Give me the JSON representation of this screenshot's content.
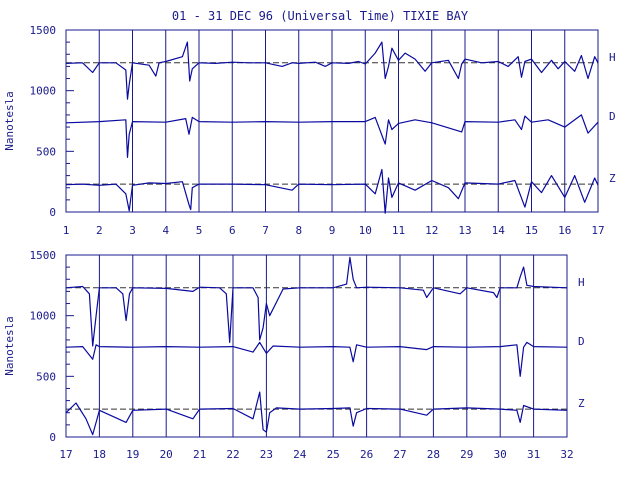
{
  "title": "01 - 31 DEC 96 (Universal Time) TIXIE BAY",
  "colors": {
    "ink": "#1a1a8c",
    "trace": "#0a0aa0",
    "background": "#ffffff"
  },
  "chart_data": [
    {
      "type": "line",
      "title": "01 - 31 DEC 96 (Universal Time) TIXIE BAY",
      "xlabel": "",
      "ylabel": "Nanotesla",
      "xlim": [
        1,
        17
      ],
      "ylim": [
        0,
        1500
      ],
      "x_ticks": [
        1,
        2,
        3,
        4,
        5,
        6,
        7,
        8,
        9,
        10,
        11,
        12,
        13,
        14,
        15,
        16,
        17
      ],
      "y_ticks": [
        0,
        500,
        1000,
        1500
      ],
      "grid": "vertical day lines",
      "series": [
        {
          "name": "H",
          "baseline": 1230,
          "dashed_reference": true,
          "x": [
            1,
            1.5,
            1.8,
            2,
            2.5,
            2.8,
            2.85,
            2.9,
            3,
            3.5,
            3.7,
            3.8,
            4,
            4.5,
            4.65,
            4.72,
            4.8,
            5,
            5.5,
            6,
            6.5,
            7,
            7.5,
            7.8,
            8,
            8.5,
            8.8,
            9,
            9.5,
            9.8,
            10,
            10.3,
            10.5,
            10.6,
            10.7,
            10.8,
            11,
            11.2,
            11.5,
            11.8,
            12,
            12.5,
            12.8,
            12.9,
            13,
            13.5,
            14,
            14.3,
            14.6,
            14.7,
            14.8,
            15,
            15.3,
            15.6,
            15.8,
            16,
            16.3,
            16.5,
            16.7,
            16.9,
            17
          ],
          "y": [
            1225,
            1230,
            1150,
            1230,
            1230,
            1170,
            930,
            1050,
            1230,
            1210,
            1120,
            1230,
            1240,
            1280,
            1400,
            1080,
            1180,
            1230,
            1225,
            1235,
            1230,
            1230,
            1200,
            1230,
            1225,
            1235,
            1200,
            1230,
            1225,
            1240,
            1220,
            1310,
            1400,
            1100,
            1200,
            1350,
            1250,
            1310,
            1260,
            1160,
            1230,
            1250,
            1100,
            1220,
            1260,
            1230,
            1240,
            1200,
            1280,
            1110,
            1240,
            1260,
            1150,
            1250,
            1180,
            1240,
            1160,
            1290,
            1100,
            1280,
            1230
          ]
        },
        {
          "name": "D",
          "baseline": 740,
          "dashed_reference": false,
          "x": [
            1,
            2,
            2.8,
            2.85,
            2.9,
            3,
            4,
            4.6,
            4.7,
            4.8,
            5,
            6,
            7,
            8,
            9,
            10,
            10.3,
            10.6,
            10.7,
            10.8,
            11,
            11.5,
            12,
            12.9,
            13,
            14,
            14.5,
            14.7,
            14.8,
            15,
            15.5,
            16,
            16.5,
            16.7,
            17
          ],
          "y": [
            735,
            745,
            760,
            450,
            640,
            745,
            740,
            770,
            640,
            780,
            745,
            740,
            745,
            740,
            745,
            745,
            780,
            560,
            760,
            680,
            730,
            760,
            735,
            660,
            745,
            740,
            760,
            680,
            790,
            740,
            760,
            700,
            800,
            650,
            740
          ]
        },
        {
          "name": "Z",
          "baseline": 230,
          "dashed_reference": true,
          "x": [
            1,
            1.5,
            2,
            2.5,
            2.8,
            2.9,
            3,
            3.5,
            4,
            4.5,
            4.7,
            4.75,
            4.8,
            5,
            6,
            7,
            7.8,
            8,
            9,
            10,
            10.3,
            10.5,
            10.6,
            10.7,
            10.8,
            11,
            11.5,
            12,
            12.5,
            12.8,
            13,
            14,
            14.5,
            14.8,
            15,
            15.3,
            15.6,
            16,
            16.3,
            16.6,
            16.9,
            17
          ],
          "y": [
            225,
            230,
            220,
            230,
            150,
            10,
            220,
            240,
            235,
            250,
            60,
            20,
            200,
            230,
            230,
            225,
            180,
            230,
            225,
            230,
            150,
            350,
            -10,
            280,
            120,
            240,
            180,
            260,
            200,
            110,
            240,
            230,
            260,
            40,
            250,
            160,
            300,
            120,
            300,
            80,
            280,
            220
          ]
        }
      ]
    },
    {
      "type": "line",
      "title": "",
      "xlabel": "",
      "ylabel": "Nanotesla",
      "xlim": [
        17,
        32
      ],
      "ylim": [
        0,
        1500
      ],
      "x_ticks": [
        17,
        18,
        19,
        20,
        21,
        22,
        23,
        24,
        25,
        26,
        27,
        28,
        29,
        30,
        31,
        32
      ],
      "y_ticks": [
        0,
        500,
        1000,
        1500
      ],
      "grid": "vertical day lines",
      "series": [
        {
          "name": "H",
          "baseline": 1230,
          "dashed_reference": true,
          "x": [
            17,
            17.5,
            17.7,
            17.8,
            17.9,
            18,
            18.5,
            18.7,
            18.8,
            18.9,
            19,
            20,
            20.8,
            21,
            21.6,
            21.8,
            21.9,
            22,
            22.6,
            22.75,
            22.8,
            22.9,
            23,
            23.1,
            23.5,
            24,
            25,
            25.4,
            25.5,
            25.6,
            25.7,
            26,
            27,
            27.7,
            27.8,
            28,
            28.8,
            29,
            29.8,
            29.9,
            30,
            30.5,
            30.6,
            30.7,
            30.8,
            31,
            32
          ],
          "y": [
            1230,
            1240,
            1180,
            750,
            1000,
            1230,
            1230,
            1180,
            960,
            1180,
            1230,
            1225,
            1200,
            1235,
            1230,
            1180,
            780,
            1230,
            1230,
            1150,
            800,
            900,
            1100,
            1000,
            1220,
            1230,
            1230,
            1260,
            1480,
            1300,
            1230,
            1235,
            1230,
            1210,
            1150,
            1230,
            1180,
            1230,
            1190,
            1150,
            1230,
            1230,
            1320,
            1400,
            1250,
            1240,
            1230
          ]
        },
        {
          "name": "D",
          "baseline": 740,
          "dashed_reference": false,
          "x": [
            17,
            17.5,
            17.8,
            17.9,
            18,
            19,
            20,
            21,
            22,
            22.6,
            22.8,
            23,
            23.2,
            24,
            25,
            25.5,
            25.6,
            25.7,
            26,
            27,
            27.8,
            28,
            29,
            30,
            30.5,
            30.6,
            30.7,
            30.8,
            31,
            32
          ],
          "y": [
            740,
            745,
            640,
            760,
            745,
            740,
            745,
            740,
            745,
            700,
            780,
            690,
            750,
            740,
            745,
            740,
            620,
            760,
            740,
            745,
            720,
            745,
            740,
            745,
            760,
            500,
            740,
            780,
            745,
            740
          ]
        },
        {
          "name": "Z",
          "baseline": 230,
          "dashed_reference": true,
          "x": [
            17,
            17.3,
            17.6,
            17.8,
            17.9,
            18,
            18.8,
            19,
            20,
            20.8,
            21,
            22,
            22.6,
            22.8,
            22.9,
            23,
            23.1,
            23.3,
            24,
            25,
            25.5,
            25.6,
            25.7,
            26,
            27,
            27.8,
            28,
            29,
            30,
            30.5,
            30.6,
            30.7,
            31,
            32
          ],
          "y": [
            200,
            280,
            150,
            20,
            120,
            220,
            120,
            220,
            230,
            150,
            230,
            235,
            150,
            370,
            60,
            40,
            200,
            240,
            230,
            235,
            240,
            90,
            200,
            235,
            230,
            180,
            230,
            240,
            230,
            220,
            120,
            260,
            230,
            220
          ]
        }
      ]
    }
  ]
}
